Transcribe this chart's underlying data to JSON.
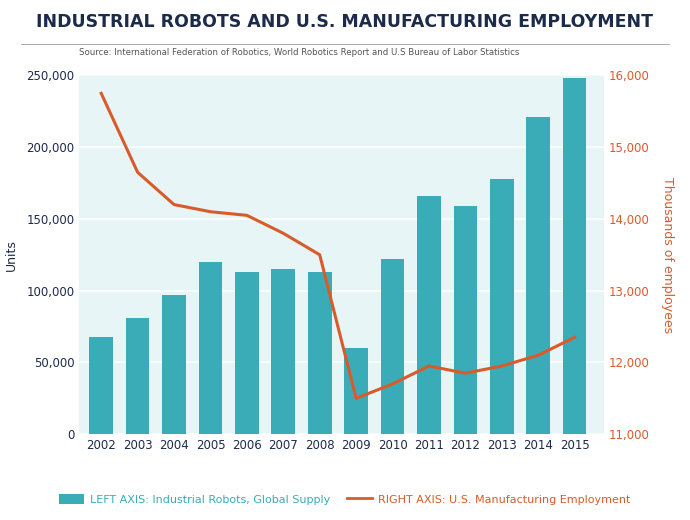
{
  "title": "INDUSTRIAL ROBOTS AND U.S. MANUFACTURING EMPLOYMENT",
  "source": "Source: International Federation of Robotics, World Robotics Report and U.S Bureau of Labor Statistics",
  "years": [
    2002,
    2003,
    2004,
    2005,
    2006,
    2007,
    2008,
    2009,
    2010,
    2011,
    2012,
    2013,
    2014,
    2015
  ],
  "robots": [
    68000,
    81000,
    97000,
    120000,
    113000,
    115000,
    113000,
    60000,
    122000,
    166000,
    159000,
    178000,
    221000,
    248000
  ],
  "employment": [
    15750,
    14650,
    14200,
    14100,
    14050,
    13800,
    13500,
    11500,
    11700,
    11950,
    11850,
    11950,
    12100,
    12350
  ],
  "bar_color": "#3AACB8",
  "line_color": "#D95B2A",
  "background_color": "#E8F5F7",
  "left_ylim": [
    0,
    250000
  ],
  "right_ylim": [
    11000,
    16000
  ],
  "left_yticks": [
    0,
    50000,
    100000,
    150000,
    200000,
    250000
  ],
  "right_yticks": [
    11000,
    12000,
    13000,
    14000,
    15000,
    16000
  ],
  "ylabel_left": "Units",
  "ylabel_right": "Thousands of employees",
  "legend_bar_label": "LEFT AXIS: Industrial Robots, Global Supply",
  "legend_line_label": "RIGHT AXIS: U.S. Manufacturing Employment",
  "title_color": "#1C2B4A",
  "source_color": "#555555",
  "left_tick_color": "#1C2B4A",
  "right_tick_color": "#D95B2A",
  "grid_color": "#FFFFFF",
  "separator_color": "#AAAAAA"
}
